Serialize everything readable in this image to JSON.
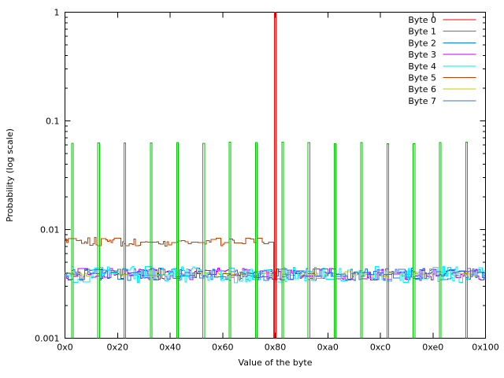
{
  "figure": {
    "background": "#ffffff",
    "border_color": "#000000",
    "text_color": "#000000"
  },
  "chart_data": {
    "type": "line",
    "style": "step-histogram on log10 y-axis (gnuplot)",
    "title": "",
    "xlabel": "Value of the byte",
    "ylabel": "Probability (log scale)",
    "x_range": [
      0,
      256
    ],
    "y_range": [
      0.001,
      1
    ],
    "y_scale": "log10",
    "grid": false,
    "legend_position": "top-right-inside",
    "x_ticks": [
      {
        "value": 0,
        "label": "0x0"
      },
      {
        "value": 32,
        "label": "0x20"
      },
      {
        "value": 64,
        "label": "0x40"
      },
      {
        "value": 96,
        "label": "0x60"
      },
      {
        "value": 128,
        "label": "0x80"
      },
      {
        "value": 160,
        "label": "0xa0"
      },
      {
        "value": 192,
        "label": "0xc0"
      },
      {
        "value": 224,
        "label": "0xe0"
      },
      {
        "value": 256,
        "label": "0x100"
      }
    ],
    "y_ticks": [
      {
        "value": 1,
        "label": "1"
      },
      {
        "value": 0.1,
        "label": "0.1"
      },
      {
        "value": 0.01,
        "label": "0.01"
      },
      {
        "value": 0.001,
        "label": "0.001"
      }
    ],
    "y_minor_ticks": "2..9 of each decade",
    "draw_order": [
      6,
      2,
      3,
      4,
      7,
      5,
      1,
      0
    ],
    "series": [
      {
        "name": "Byte 0",
        "color": "#ff0000",
        "type": "spikes",
        "centered": true,
        "seed": 1,
        "spikes": [
          {
            "value": 128,
            "hex": "0x80",
            "probability": 1.0
          }
        ]
      },
      {
        "name": "Byte 1",
        "color": "#00c000",
        "type": "spikes",
        "centered": false,
        "seed": 2,
        "spike_probability": 0.0625,
        "spike_values": [
          4,
          20,
          36,
          52,
          68,
          84,
          100,
          116,
          132,
          148,
          164,
          180,
          196,
          212,
          228,
          244
        ],
        "spike_values_hex": [
          "0x04",
          "0x14",
          "0x24",
          "0x34",
          "0x44",
          "0x54",
          "0x64",
          "0x74",
          "0x84",
          "0x94",
          "0xa4",
          "0xb4",
          "0xc4",
          "0xd4",
          "0xe4",
          "0xf4"
        ]
      },
      {
        "name": "Byte 2",
        "color": "#0080ff",
        "type": "noisy-uniform",
        "support": [
          0,
          255
        ],
        "support_hex": [
          "0x00",
          "0xff"
        ],
        "base_probability": 0.00390625,
        "noise_amplitude": 0.13,
        "seed": 11
      },
      {
        "name": "Byte 3",
        "color": "#c000ff",
        "type": "noisy-uniform",
        "support": [
          0,
          255
        ],
        "support_hex": [
          "0x00",
          "0xff"
        ],
        "base_probability": 0.00390625,
        "noise_amplitude": 0.13,
        "seed": 7
      },
      {
        "name": "Byte 4",
        "color": "#00eeee",
        "type": "noisy-uniform",
        "support": [
          0,
          255
        ],
        "support_hex": [
          "0x00",
          "0xff"
        ],
        "base_probability": 0.00390625,
        "noise_amplitude": 0.17,
        "seed": 3
      },
      {
        "name": "Byte 5",
        "color": "#c04000",
        "type": "noisy-uniform",
        "support": [
          0,
          127
        ],
        "support_hex": [
          "0x00",
          "0x7f"
        ],
        "base_probability": 0.0078125,
        "noise_amplitude": 0.1,
        "seed": 9,
        "drops_to_zero_at": "0x80"
      },
      {
        "name": "Byte 6",
        "color": "#c8c800",
        "type": "noisy-uniform",
        "support": [
          0,
          255
        ],
        "support_hex": [
          "0x00",
          "0xff"
        ],
        "base_probability": 0.00390625,
        "noise_amplitude": 0.05,
        "seed": 5
      },
      {
        "name": "Byte 7",
        "color": "#4169e1",
        "type": "noisy-uniform",
        "support": [
          0,
          255
        ],
        "support_hex": [
          "0x00",
          "0xff"
        ],
        "base_probability": 0.00390625,
        "noise_amplitude": 0.12,
        "seed": 13
      }
    ]
  }
}
